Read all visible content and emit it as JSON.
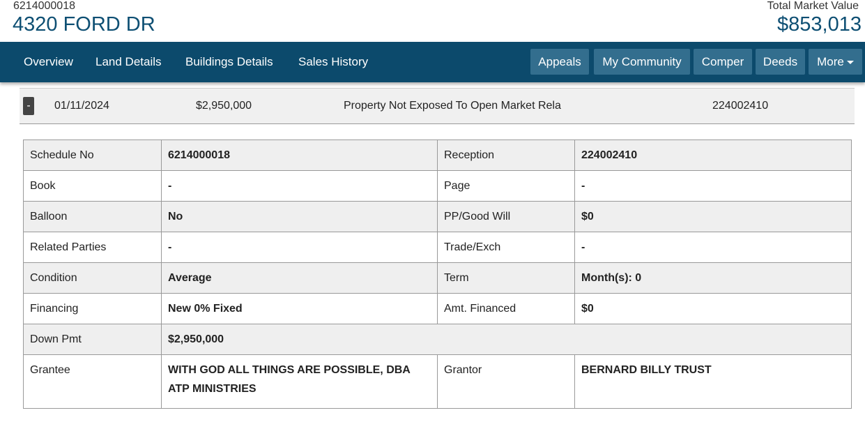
{
  "header": {
    "schedule_no": "6214000018",
    "address": "4320 FORD DR",
    "market_value_label": "Total Market Value",
    "market_value": "$853,013"
  },
  "nav": {
    "tabs": [
      "Overview",
      "Land Details",
      "Buildings Details",
      "Sales History"
    ],
    "buttons": [
      "Appeals",
      "My Community",
      "Comper",
      "Deeds",
      "More"
    ]
  },
  "sale": {
    "toggle": "-",
    "date": "01/11/2024",
    "price": "$2,950,000",
    "description": "Property Not Exposed To Open Market Rela",
    "reception": "224002410"
  },
  "table": {
    "rows": [
      [
        "Schedule No",
        "6214000018",
        "Reception",
        "224002410"
      ],
      [
        "Book",
        "-",
        "Page",
        "-"
      ],
      [
        "Balloon",
        "No",
        "PP/Good Will",
        "$0"
      ],
      [
        "Related Parties",
        "-",
        "Trade/Exch",
        "-"
      ],
      [
        "Condition",
        "Average",
        "Term",
        "Month(s): 0"
      ],
      [
        "Financing",
        "New 0% Fixed",
        "Amt. Financed",
        "$0"
      ],
      [
        "Down Pmt",
        "$2,950,000"
      ],
      [
        "Grantee",
        "WITH GOD ALL THINGS ARE POSSIBLE, DBA ATP MINISTRIES",
        "Grantor",
        "BERNARD BILLY TRUST"
      ]
    ]
  }
}
